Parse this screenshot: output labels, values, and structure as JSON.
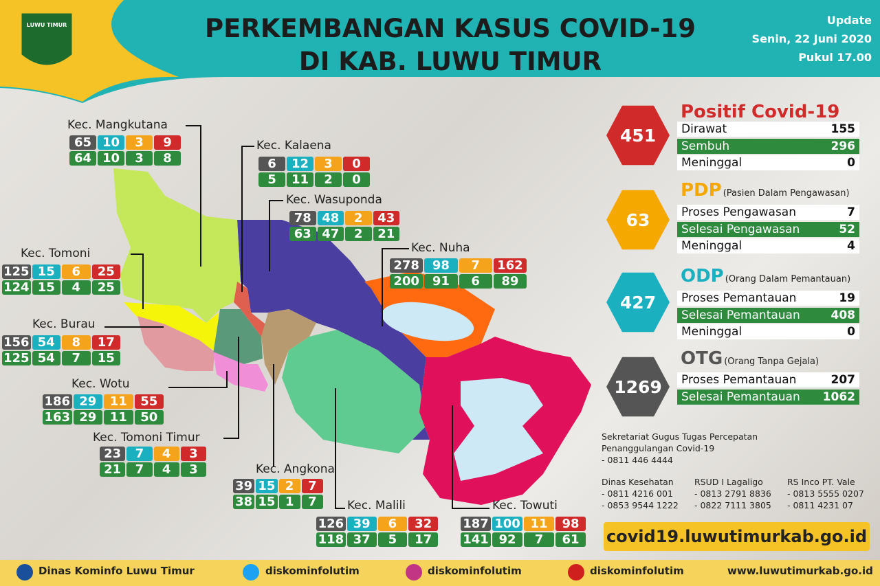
{
  "header": {
    "logo_text": "LUWU TIMUR",
    "title_line1": "PERKEMBANGAN KASUS COVID-19",
    "title_line2": "DI KAB. LUWU TIMUR",
    "update_label": "Update",
    "update_date": "Senin, 22 Juni 2020",
    "update_time": "Pukul 17.00"
  },
  "districts": [
    {
      "name": "Kec. Mangkutana",
      "top": [
        65,
        10,
        3,
        9
      ],
      "bottom": [
        64,
        10,
        3,
        8
      ]
    },
    {
      "name": "Kec. Kalaena",
      "top": [
        6,
        12,
        3,
        0
      ],
      "bottom": [
        5,
        11,
        2,
        0
      ]
    },
    {
      "name": "Kec. Wasuponda",
      "top": [
        78,
        48,
        2,
        43
      ],
      "bottom": [
        63,
        47,
        2,
        21
      ]
    },
    {
      "name": "Kec. Nuha",
      "top": [
        278,
        98,
        7,
        162
      ],
      "bottom": [
        200,
        91,
        6,
        89
      ]
    },
    {
      "name": "Kec. Tomoni",
      "top": [
        125,
        15,
        6,
        25
      ],
      "bottom": [
        124,
        15,
        4,
        25
      ]
    },
    {
      "name": "Kec. Burau",
      "top": [
        156,
        54,
        8,
        17
      ],
      "bottom": [
        125,
        54,
        7,
        15
      ]
    },
    {
      "name": "Kec. Wotu",
      "top": [
        186,
        29,
        11,
        55
      ],
      "bottom": [
        163,
        29,
        11,
        50
      ]
    },
    {
      "name": "Kec. Tomoni Timur",
      "top": [
        23,
        7,
        4,
        3
      ],
      "bottom": [
        21,
        7,
        4,
        3
      ]
    },
    {
      "name": "Kec. Angkona",
      "top": [
        39,
        15,
        2,
        7
      ],
      "bottom": [
        38,
        15,
        1,
        7
      ]
    },
    {
      "name": "Kec. Malili",
      "top": [
        126,
        39,
        6,
        32
      ],
      "bottom": [
        118,
        37,
        5,
        17
      ]
    },
    {
      "name": "Kec. Towuti",
      "top": [
        187,
        100,
        11,
        98
      ],
      "bottom": [
        141,
        92,
        7,
        61
      ]
    }
  ],
  "summary": [
    {
      "badge": 451,
      "title": "Positif Covid-19",
      "rows": [
        {
          "label": "Dirawat",
          "value": 155
        },
        {
          "label": "Sembuh",
          "value": 296
        },
        {
          "label": "Meninggal",
          "value": 0
        }
      ]
    },
    {
      "badge": 63,
      "title": "PDP",
      "subtitle": "(Pasien Dalam Pengawasan)",
      "rows": [
        {
          "label": "Proses Pengawasan",
          "value": 7
        },
        {
          "label": "Selesai Pengawasan",
          "value": 52
        },
        {
          "label": "Meninggal",
          "value": 4
        }
      ]
    },
    {
      "badge": 427,
      "title": "ODP",
      "subtitle": "(Orang Dalam Pemantauan)",
      "rows": [
        {
          "label": "Proses Pemantauan",
          "value": 19
        },
        {
          "label": "Selesai Pemantauan",
          "value": 408
        },
        {
          "label": "Meninggal",
          "value": 0
        }
      ]
    },
    {
      "badge": 1269,
      "title": "OTG",
      "subtitle": "(Orang Tanpa Gejala)",
      "rows": [
        {
          "label": "Proses Pemantauan",
          "value": 207
        },
        {
          "label": "Selesai Pemantauan",
          "value": 1062
        }
      ]
    }
  ],
  "contacts": {
    "secretariat": [
      "Sekretariat Gugus Tugas Percepatan",
      "Penanggulangan Covid-19",
      "- 0811 446 4444"
    ],
    "columns": [
      [
        "Dinas Kesehatan",
        "- 0811 4216 001",
        "- 0853 9544 1222"
      ],
      [
        "RSUD I Lagaligo",
        "- 0813 2791 8836",
        "- 0822 7111 3805"
      ],
      [
        "RS Inco PT. Vale",
        "- 0813 5555 0207",
        "- 0811 4231 07"
      ]
    ]
  },
  "website": "covid19.luwutimurkab.go.id",
  "footer": [
    "Dinas Kominfo Luwu Timur",
    "diskominfolutim",
    "diskominfolutim",
    "diskominfolutim",
    "www.luwutimurkab.go.id"
  ]
}
